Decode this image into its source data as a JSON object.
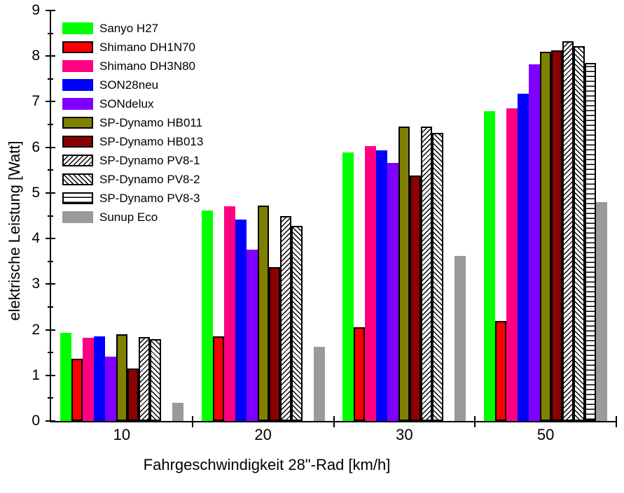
{
  "chart_data": {
    "type": "bar",
    "title": "",
    "xlabel": "Fahrgeschwindigkeit 28\"-Rad [km/h]",
    "ylabel": "elektrische Leistung [Watt]",
    "categories": [
      "10",
      "20",
      "30",
      "50"
    ],
    "ylim": [
      0,
      9
    ],
    "y_major_tick": 1,
    "y_minor_tick": 0.5,
    "grid": false,
    "legend_position": "top-left-inside",
    "series": [
      {
        "name": "Sanyo H27",
        "color": "#00ff00",
        "pattern": "solid",
        "outline": false,
        "values": [
          1.93,
          4.62,
          5.89,
          6.8
        ]
      },
      {
        "name": "Shimano DH1N70",
        "color": "#ff0000",
        "pattern": "solid",
        "outline": true,
        "values": [
          1.37,
          1.86,
          2.06,
          2.2
        ]
      },
      {
        "name": "Shimano DH3N80",
        "color": "#ff0080",
        "pattern": "solid",
        "outline": false,
        "values": [
          1.82,
          4.7,
          6.02,
          6.86
        ]
      },
      {
        "name": "SON28neu",
        "color": "#0000ff",
        "pattern": "solid",
        "outline": false,
        "values": [
          1.85,
          4.41,
          5.93,
          7.18
        ]
      },
      {
        "name": "SONdelux",
        "color": "#8000ff",
        "pattern": "solid",
        "outline": false,
        "values": [
          1.41,
          3.75,
          5.66,
          7.82
        ]
      },
      {
        "name": "SP-Dynamo HB011",
        "color": "#808000",
        "pattern": "solid",
        "outline": true,
        "values": [
          1.9,
          4.72,
          6.45,
          8.1
        ]
      },
      {
        "name": "SP-Dynamo HB013",
        "color": "#8b0000",
        "pattern": "solid",
        "outline": true,
        "values": [
          1.15,
          3.38,
          5.38,
          8.12
        ]
      },
      {
        "name": "SP-Dynamo PV8-1",
        "color": "#ffffff",
        "pattern": "hatch-forward",
        "outline": true,
        "values": [
          1.84,
          4.5,
          6.46,
          8.33
        ]
      },
      {
        "name": "SP-Dynamo PV8-2",
        "color": "#ffffff",
        "pattern": "hatch-backward",
        "outline": true,
        "values": [
          1.79,
          4.28,
          6.31,
          8.22
        ]
      },
      {
        "name": "SP-Dynamo PV8-3",
        "color": "#ffffff",
        "pattern": "horizontal-lines",
        "outline": true,
        "values": [
          null,
          null,
          null,
          7.85
        ]
      },
      {
        "name": "Sunup Eco",
        "color": "#9a9a9a",
        "pattern": "solid",
        "outline": false,
        "values": [
          0.4,
          1.63,
          3.62,
          4.8
        ]
      }
    ]
  }
}
